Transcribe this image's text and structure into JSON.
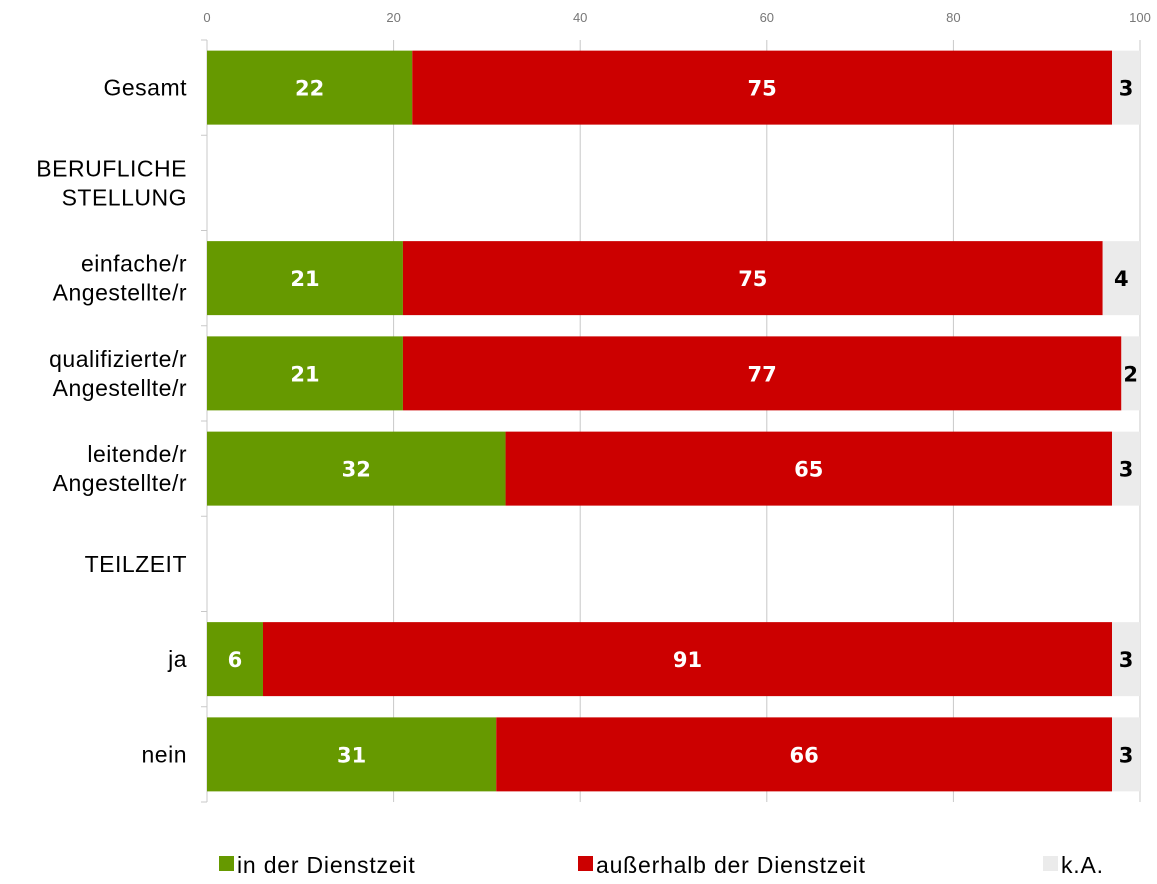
{
  "chart_data": {
    "type": "bar",
    "orientation": "horizontal",
    "stacked": true,
    "categories": [
      "Gesamt",
      "BERUFLICHE STELLUNG",
      "einfache/r Angestellte/r",
      "qualifizierte/r Angestellte/r",
      "leitende/r Angestellte/r",
      "TEILZEIT",
      "ja",
      "nein"
    ],
    "series": [
      {
        "name": "in der Dienstzeit",
        "color": "#669900",
        "values": [
          22,
          null,
          21,
          21,
          32,
          null,
          6,
          31
        ]
      },
      {
        "name": "außerhalb der Dienstzeit",
        "color": "#cc0000",
        "values": [
          75,
          null,
          75,
          77,
          65,
          null,
          91,
          66
        ]
      },
      {
        "name": "k.A.",
        "color": "#ebebeb",
        "values": [
          3,
          null,
          4,
          2,
          3,
          null,
          3,
          3
        ]
      }
    ],
    "xlim": [
      0,
      100
    ],
    "xticks": [
      0,
      20,
      40,
      60,
      80,
      100
    ],
    "grid": true,
    "legend_position": "bottom",
    "title": "",
    "xlabel": "",
    "ylabel": ""
  }
}
